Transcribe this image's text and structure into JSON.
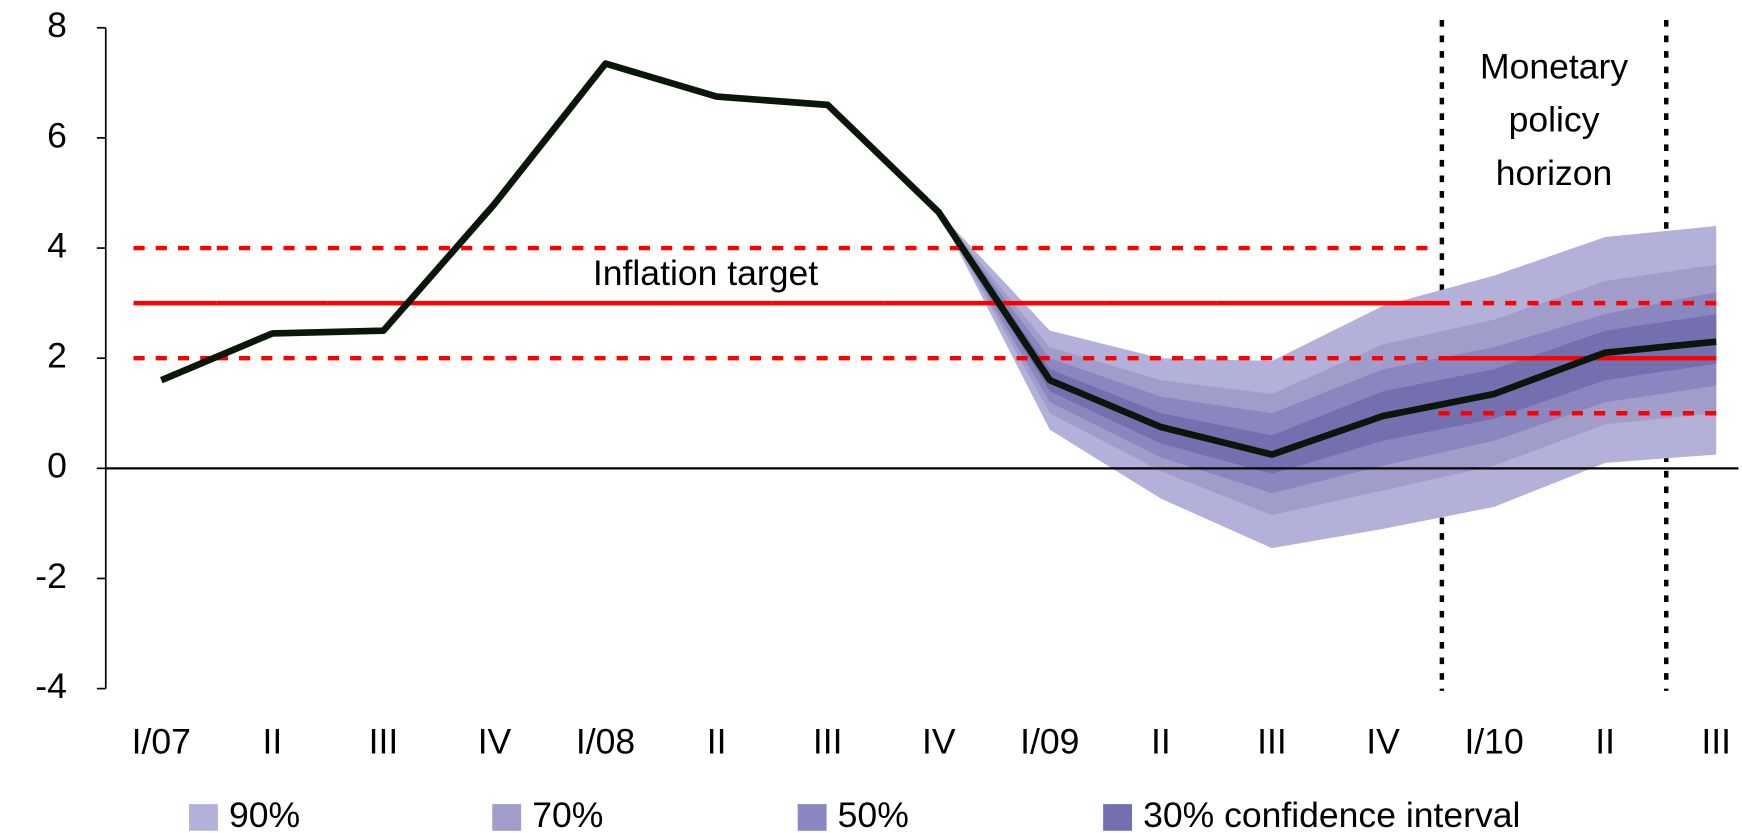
{
  "chart_data": {
    "type": "fan",
    "categories": [
      "I/07",
      "II",
      "III",
      "IV",
      "I/08",
      "II",
      "III",
      "IV",
      "I/09",
      "II",
      "III",
      "IV",
      "I/10",
      "II",
      "III"
    ],
    "ylim": [
      -4,
      8
    ],
    "yticks": [
      -4,
      -2,
      0,
      2,
      4,
      6,
      8
    ],
    "line": {
      "color": "#0a160a",
      "values": [
        1.6,
        2.45,
        2.5,
        4.8,
        7.35,
        6.75,
        6.6,
        4.65,
        1.6,
        0.75,
        0.25,
        0.95,
        1.35,
        2.1,
        2.3
      ]
    },
    "series": [
      {
        "name": "90%",
        "color": "#b3b0d9",
        "upper": [
          null,
          null,
          null,
          null,
          null,
          null,
          null,
          4.65,
          2.5,
          2.0,
          1.95,
          2.95,
          3.5,
          4.2,
          4.4
        ],
        "lower": [
          null,
          null,
          null,
          null,
          null,
          null,
          null,
          4.65,
          0.7,
          -0.55,
          -1.45,
          -1.1,
          -0.7,
          0.1,
          0.25
        ]
      },
      {
        "name": "70%",
        "color": "#a09dcb",
        "upper": [
          null,
          null,
          null,
          null,
          null,
          null,
          null,
          4.65,
          2.2,
          1.6,
          1.35,
          2.25,
          2.7,
          3.4,
          3.7
        ],
        "lower": [
          null,
          null,
          null,
          null,
          null,
          null,
          null,
          4.65,
          1.0,
          -0.05,
          -0.85,
          -0.4,
          0.05,
          0.8,
          1.0
        ]
      },
      {
        "name": "50%",
        "color": "#8a86bf",
        "upper": [
          null,
          null,
          null,
          null,
          null,
          null,
          null,
          4.65,
          2.0,
          1.3,
          1.0,
          1.8,
          2.2,
          2.8,
          3.2
        ],
        "lower": [
          null,
          null,
          null,
          null,
          null,
          null,
          null,
          4.65,
          1.2,
          0.2,
          -0.45,
          0.05,
          0.5,
          1.2,
          1.5
        ]
      },
      {
        "name": "30% confidence interval",
        "color": "#7470b0",
        "upper": [
          null,
          null,
          null,
          null,
          null,
          null,
          null,
          4.65,
          1.8,
          1.0,
          0.6,
          1.4,
          1.8,
          2.5,
          2.8
        ],
        "lower": [
          null,
          null,
          null,
          null,
          null,
          null,
          null,
          4.65,
          1.4,
          0.45,
          -0.1,
          0.5,
          0.9,
          1.6,
          1.9
        ]
      }
    ],
    "target": {
      "name": "Inflation target",
      "color": "#ff0000",
      "values": [
        3,
        3,
        3,
        3,
        3,
        3,
        3,
        3,
        3,
        3,
        3,
        3,
        2,
        2,
        2
      ],
      "lower": [
        2,
        2,
        2,
        2,
        2,
        2,
        2,
        2,
        2,
        2,
        2,
        2,
        1,
        1,
        1
      ],
      "upper": [
        4,
        4,
        4,
        4,
        4,
        4,
        4,
        4,
        4,
        4,
        4,
        4,
        3,
        3,
        3
      ]
    },
    "horizon_label": [
      "Monetary",
      "policy",
      "horizon"
    ]
  }
}
